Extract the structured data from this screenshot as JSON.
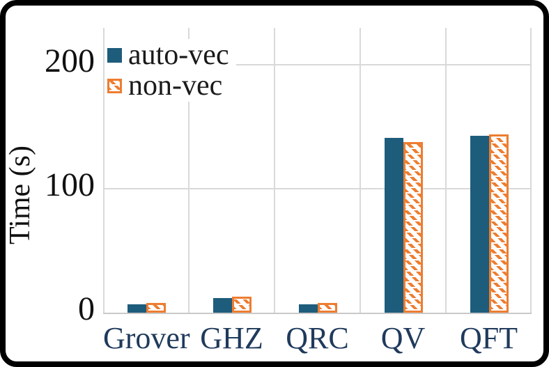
{
  "chart_data": {
    "type": "bar",
    "title": "",
    "xlabel": "",
    "ylabel": "Time (s)",
    "categories": [
      "Grover",
      "GHZ",
      "QRC",
      "QV",
      "QFT"
    ],
    "series": [
      {
        "name": "auto-vec",
        "style": "solid",
        "color": "#1e5c7c",
        "values": [
          7,
          12,
          7,
          141,
          143
        ]
      },
      {
        "name": "non-vec",
        "style": "hatched",
        "color": "#ed7d31",
        "values": [
          8,
          13,
          8,
          138,
          144
        ]
      }
    ],
    "y_ticks": [
      0,
      100,
      200
    ],
    "y_gridlines": [
      100,
      200
    ],
    "ylim": [
      0,
      230
    ],
    "grid": true,
    "legend_position": "top-left-inside",
    "grid_color": "#d9d9d9",
    "axis_line_color": "#c9c9c9",
    "category_label_color": "#1f3a5c",
    "tick_label_color": "#111111",
    "background_color": "#ffffff",
    "frame_color": "#000000"
  }
}
